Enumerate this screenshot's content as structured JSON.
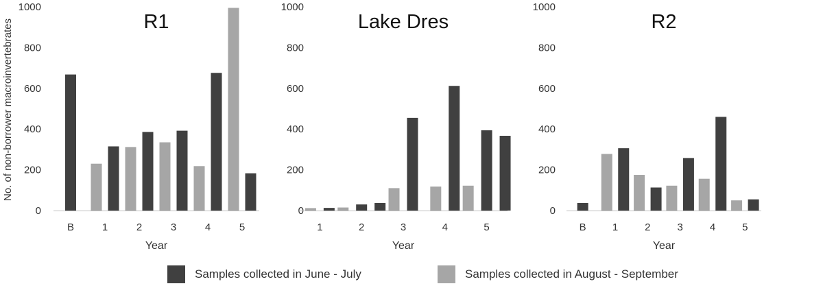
{
  "figure": {
    "ylabel": "No. of non-borrower macroinvertebrates",
    "colors": {
      "june_july": "#404040",
      "aug_sep": "#a6a6a6",
      "axis": "#bfbfbf",
      "text": "#333333"
    }
  },
  "legend": {
    "june_july": "Samples collected in June - July",
    "aug_sep": "Samples collected in August - September"
  },
  "chart_data": [
    {
      "type": "bar",
      "title": "R1",
      "xlabel": "Year",
      "ylim": [
        0,
        1000
      ],
      "yticks": [
        "0",
        "200",
        "400",
        "600",
        "800",
        "1000"
      ],
      "categories": [
        "B",
        "1",
        "2",
        "3",
        "4",
        "5"
      ],
      "series": [
        {
          "name": "Samples collected in August - September",
          "key": "aug_sep",
          "values": [
            0,
            230,
            312,
            335,
            218,
            995
          ]
        },
        {
          "name": "Samples collected in June - July",
          "key": "june_july",
          "values": [
            668,
            315,
            386,
            392,
            676,
            183
          ]
        }
      ]
    },
    {
      "type": "bar",
      "title": "Lake Dres",
      "xlabel": "Year",
      "ylim": [
        0,
        1000
      ],
      "yticks": [
        "0",
        "200",
        "400",
        "600",
        "800",
        "1000"
      ],
      "categories": [
        "1",
        "2",
        "3",
        "4",
        "5"
      ],
      "series": [
        {
          "name": "Samples collected in August - September",
          "key": "aug_sep",
          "values": [
            12,
            15,
            110,
            118,
            122
          ]
        },
        {
          "name": "Samples collected in June - July",
          "key": "june_july",
          "values": [
            13,
            30,
            455,
            612,
            394
          ]
        },
        {
          "name": "Samples collected in June - July",
          "key": "june_july",
          "values": [
            0,
            37,
            0,
            0,
            367
          ]
        }
      ]
    },
    {
      "type": "bar",
      "title": "R2",
      "xlabel": "Year",
      "ylim": [
        0,
        1000
      ],
      "yticks": [
        "0",
        "200",
        "400",
        "600",
        "800",
        "1000"
      ],
      "categories": [
        "B",
        "1",
        "2",
        "3",
        "4",
        "5"
      ],
      "series": [
        {
          "name": "Samples collected in August - September",
          "key": "aug_sep",
          "values": [
            0,
            278,
            175,
            122,
            156,
            50
          ]
        },
        {
          "name": "Samples collected in June - July",
          "key": "june_july",
          "values": [
            37,
            306,
            113,
            258,
            460,
            55
          ]
        }
      ]
    }
  ]
}
